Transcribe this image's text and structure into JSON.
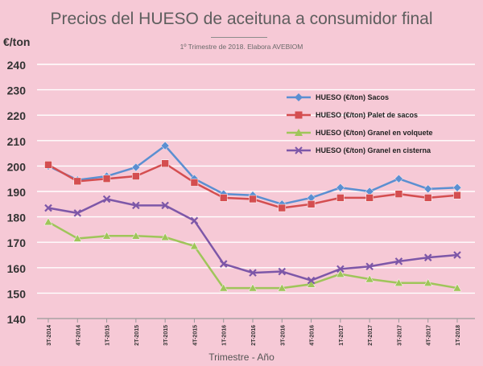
{
  "chart_data": {
    "type": "line",
    "title": "Precios del HUESO de aceituna a consumidor final",
    "subtitle": "1º Trimestre de 2018. Elabora AVEBIOM",
    "ylabel": "€/ton",
    "xlabel": "Trimestre - Año",
    "ylim": [
      140,
      240
    ],
    "yticks": [
      140,
      150,
      160,
      170,
      180,
      190,
      200,
      210,
      220,
      230,
      240
    ],
    "grid": true,
    "legend_position": "top-right",
    "categories": [
      "3T-2014",
      "4T-2014",
      "1T-2015",
      "2T-2015",
      "3T-2015",
      "4T-2015",
      "1T-2016",
      "2T-2016",
      "3T-2016",
      "4T-2016",
      "1T-2017",
      "2T-2017",
      "3T-2017",
      "4T-2017",
      "1T-2018"
    ],
    "series": [
      {
        "name": "HUESO (€/ton) Sacos",
        "color": "#5b8fd1",
        "marker": "diamond",
        "values": [
          200,
          194.5,
          196,
          199.5,
          208,
          195,
          189,
          188.5,
          185,
          187.5,
          191.5,
          190,
          195,
          191,
          191.5
        ]
      },
      {
        "name": "HUESO (€/ton) Palet de sacos",
        "color": "#d44e50",
        "marker": "square",
        "values": [
          200.5,
          194,
          195,
          196,
          201,
          193.5,
          187.5,
          187,
          183.5,
          185,
          187.5,
          187.5,
          189,
          187.5,
          188.5
        ]
      },
      {
        "name": "HUESO (€/ton) Granel en volquete",
        "color": "#9fc55a",
        "marker": "triangle",
        "values": [
          178,
          171.5,
          172.5,
          172.5,
          172,
          168.5,
          152,
          152,
          152,
          153.5,
          157.5,
          155.5,
          154,
          154,
          152
        ]
      },
      {
        "name": "HUESO (€/ton) Granel en cisterna",
        "color": "#7d57a8",
        "marker": "x",
        "values": [
          183.5,
          181.5,
          187,
          184.5,
          184.5,
          178.5,
          161.5,
          158,
          158.5,
          155,
          159.5,
          160.5,
          162.5,
          164,
          165
        ]
      }
    ]
  }
}
